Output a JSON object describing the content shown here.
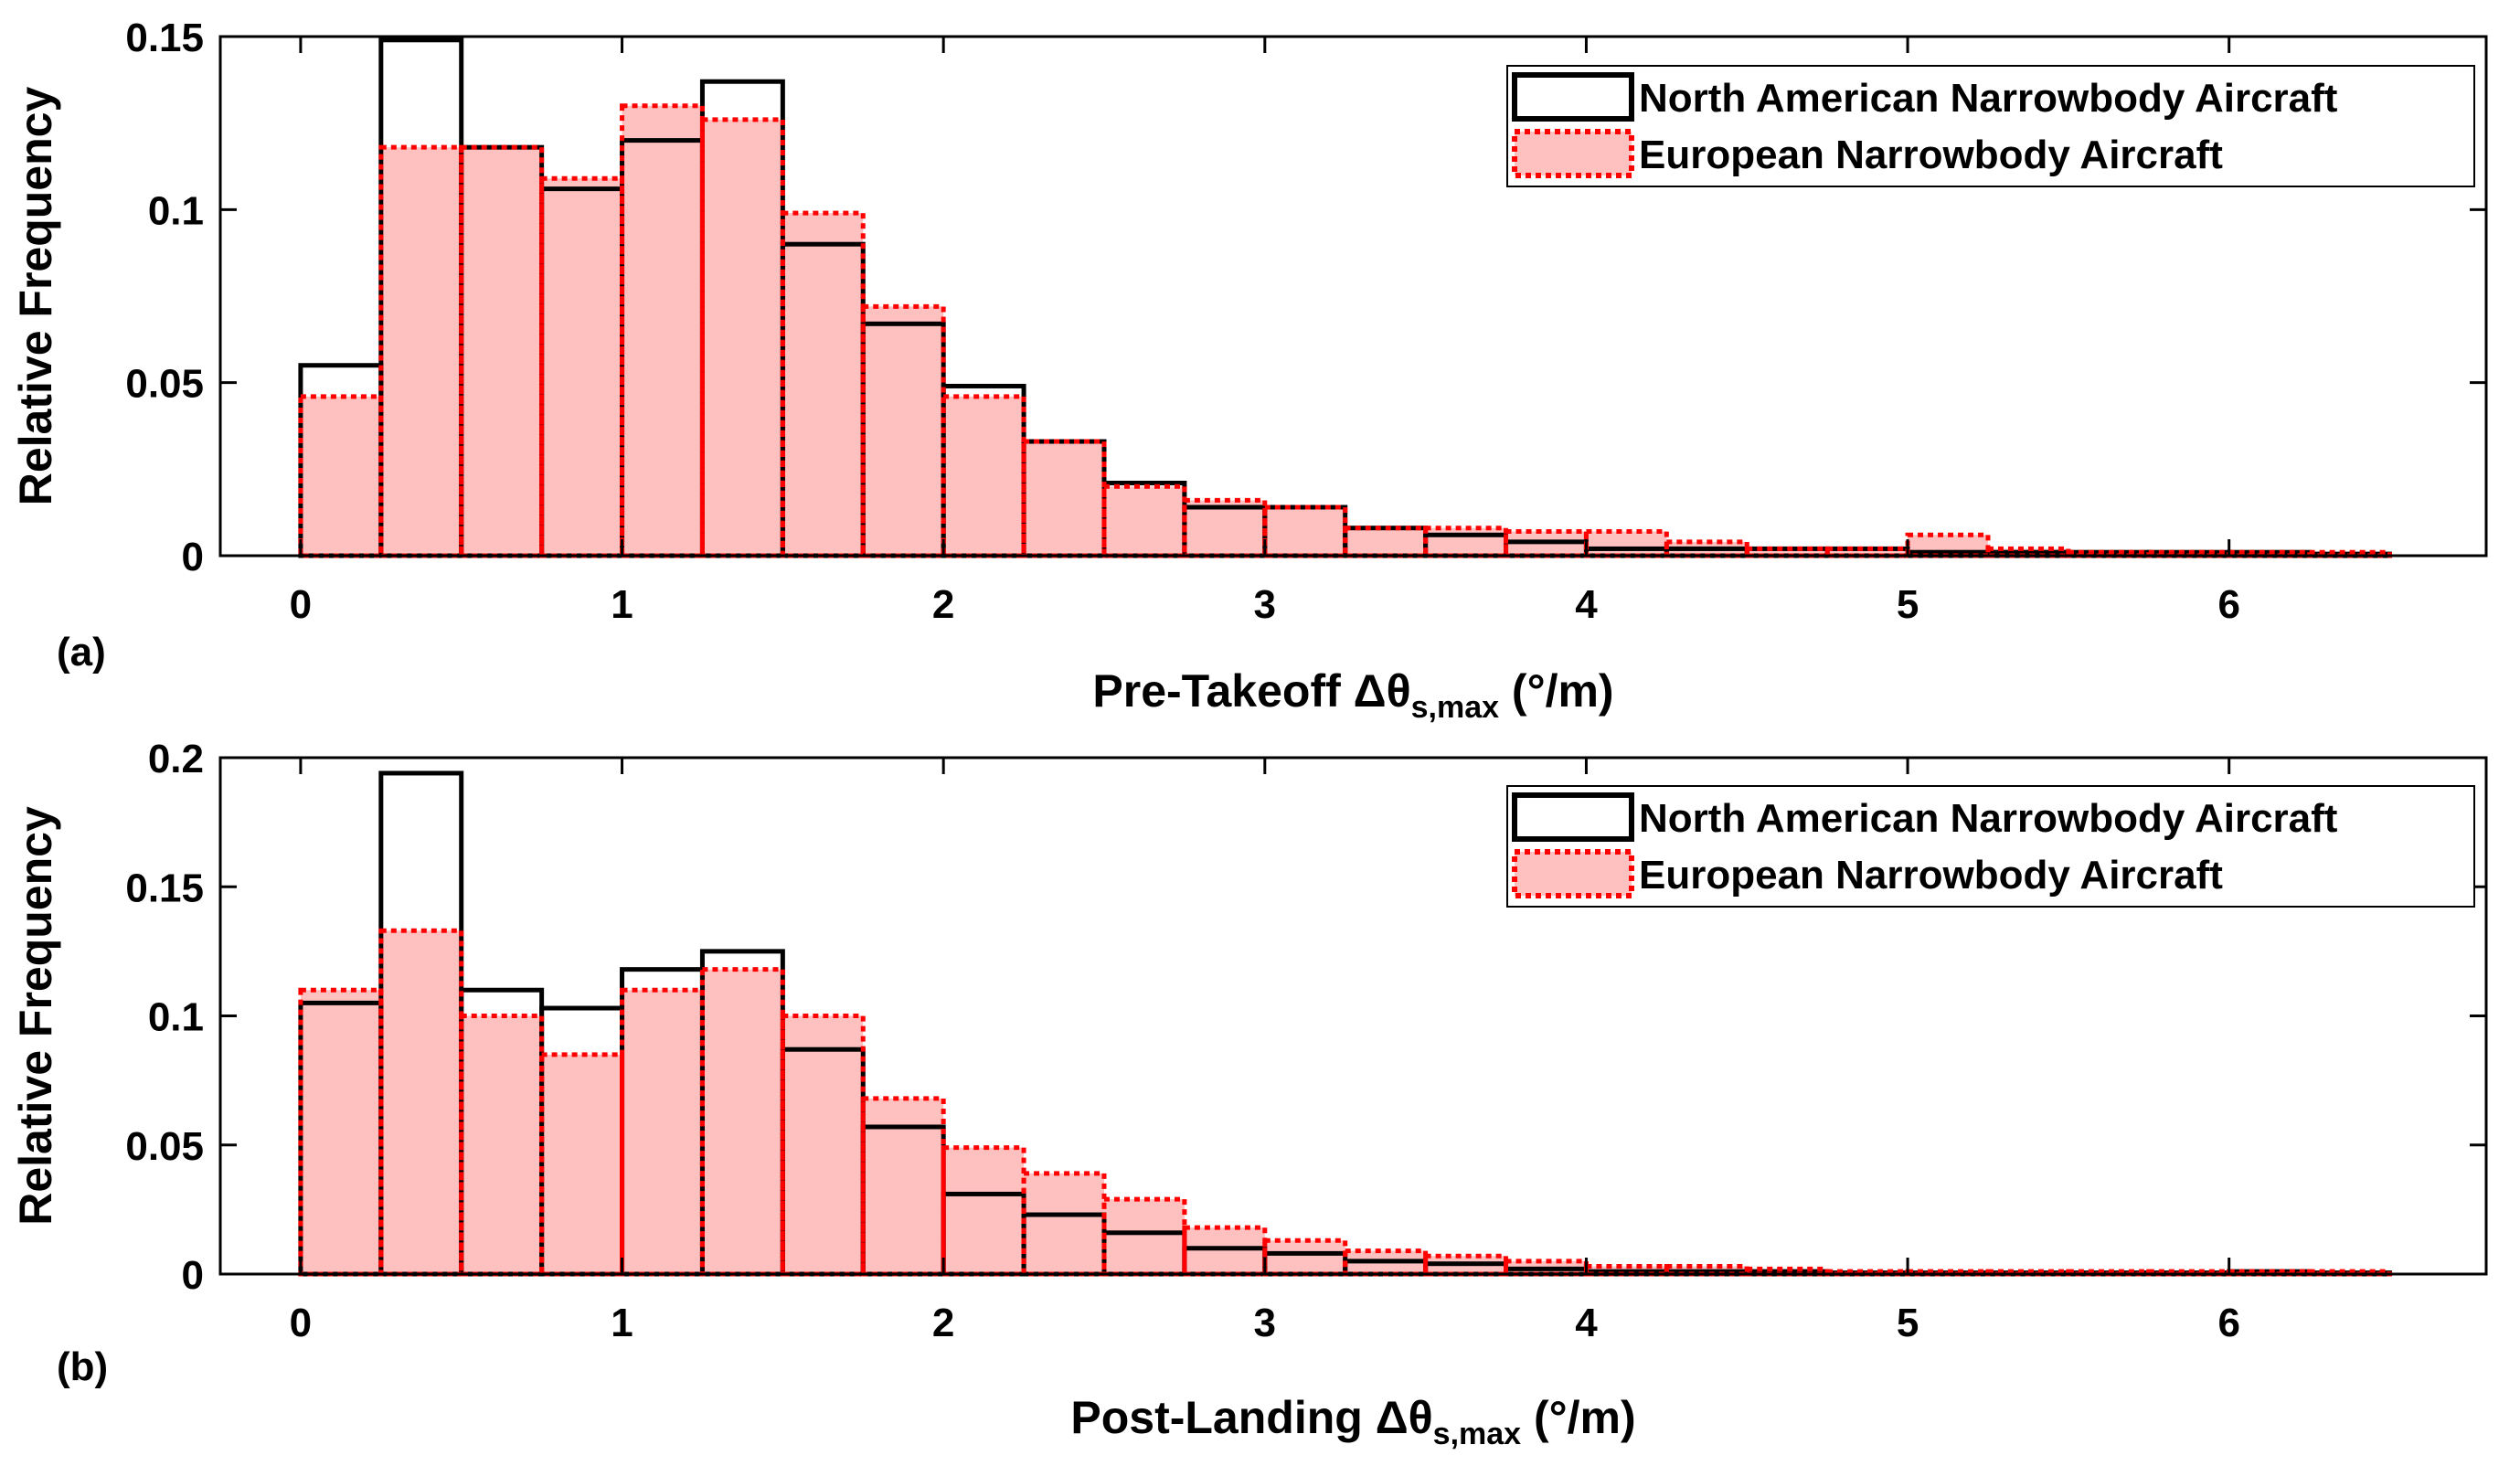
{
  "chart_data": [
    {
      "type": "bar",
      "panel_label": "(a)",
      "xlabel_main": "Pre-Takeoff Δθ",
      "xlabel_sub": "s,max",
      "xlabel_unit": " (°/m)",
      "ylabel": "Relative Frequency",
      "xlim": [
        -0.25,
        6.8
      ],
      "ylim": [
        0,
        0.15
      ],
      "bin_width": 0.25,
      "bin_edges_start": 0,
      "x_ticks": [
        "0",
        "1",
        "2",
        "3",
        "4",
        "5",
        "6"
      ],
      "x_tick_values": [
        0,
        1,
        2,
        3,
        4,
        5,
        6
      ],
      "y_ticks": [
        "0",
        "0.05",
        "0.1",
        "0.15"
      ],
      "y_tick_values": [
        0,
        0.05,
        0.1,
        0.15
      ],
      "legend_position": "top-right",
      "series": [
        {
          "name": "North American Narrowbody Aircraft",
          "color": "#000000",
          "values": [
            0.055,
            0.149,
            0.118,
            0.106,
            0.12,
            0.137,
            0.09,
            0.067,
            0.049,
            0.033,
            0.021,
            0.014,
            0.014,
            0.008,
            0.006,
            0.004,
            0.002,
            0.002,
            0.002,
            0.002,
            0.001,
            0.001,
            0.001,
            0.001,
            0.001,
            0.0005
          ]
        },
        {
          "name": "European Narrowbody Aircraft",
          "color": "#ff0000",
          "fill": "#ffc0c0",
          "values": [
            0.046,
            0.118,
            0.118,
            0.109,
            0.13,
            0.126,
            0.099,
            0.072,
            0.046,
            0.033,
            0.02,
            0.016,
            0.014,
            0.008,
            0.008,
            0.007,
            0.007,
            0.004,
            0.002,
            0.002,
            0.006,
            0.002,
            0.001,
            0.001,
            0.001,
            0.001
          ]
        }
      ]
    },
    {
      "type": "bar",
      "panel_label": "(b)",
      "xlabel_main": "Post-Landing Δθ",
      "xlabel_sub": "s,max",
      "xlabel_unit": " (°/m)",
      "ylabel": "Relative Frequency",
      "xlim": [
        -0.25,
        6.8
      ],
      "ylim": [
        0,
        0.2
      ],
      "bin_width": 0.25,
      "bin_edges_start": 0,
      "x_ticks": [
        "0",
        "1",
        "2",
        "3",
        "4",
        "5",
        "6"
      ],
      "x_tick_values": [
        0,
        1,
        2,
        3,
        4,
        5,
        6
      ],
      "y_ticks": [
        "0",
        "0.05",
        "0.1",
        "0.15",
        "0.2"
      ],
      "y_tick_values": [
        0,
        0.05,
        0.1,
        0.15,
        0.2
      ],
      "legend_position": "top-right",
      "series": [
        {
          "name": "North American Narrowbody Aircraft",
          "color": "#000000",
          "values": [
            0.105,
            0.194,
            0.11,
            0.103,
            0.118,
            0.125,
            0.087,
            0.057,
            0.031,
            0.023,
            0.016,
            0.01,
            0.008,
            0.005,
            0.004,
            0.002,
            0.001,
            0.001,
            0.001,
            0.0005,
            0.0005,
            0.0005,
            0.0005,
            0.0005,
            0.001,
            0.0005
          ]
        },
        {
          "name": "European Narrowbody Aircraft",
          "color": "#ff0000",
          "fill": "#ffc0c0",
          "values": [
            0.11,
            0.133,
            0.1,
            0.085,
            0.11,
            0.118,
            0.1,
            0.068,
            0.049,
            0.039,
            0.029,
            0.018,
            0.013,
            0.009,
            0.007,
            0.005,
            0.003,
            0.003,
            0.002,
            0.001,
            0.001,
            0.001,
            0.001,
            0.001,
            0.001,
            0.001
          ]
        }
      ]
    }
  ]
}
